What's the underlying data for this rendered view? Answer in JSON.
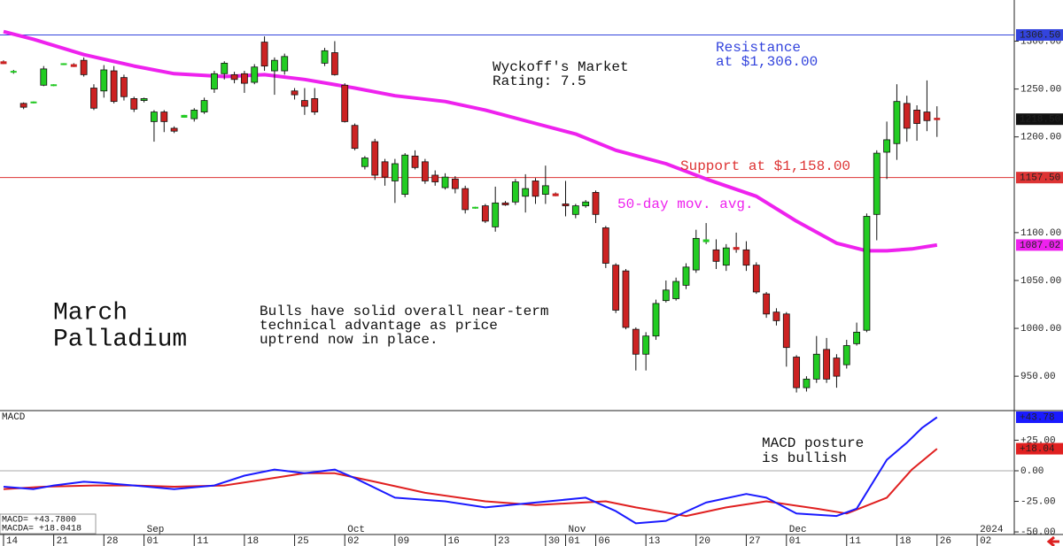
{
  "chart_data": {
    "type": "candlestick",
    "xlim": [
      -0.35,
      100.7
    ],
    "ylim": [
      915,
      1343
    ],
    "yticks": [
      {
        "value": 950,
        "label": "950.00"
      },
      {
        "value": 1000,
        "label": "1000.00"
      },
      {
        "value": 1050,
        "label": "1050.00"
      },
      {
        "value": 1100,
        "label": "1100.00"
      },
      {
        "value": 1200,
        "label": "1200.00"
      },
      {
        "value": 1250,
        "label": "1250.00"
      },
      {
        "value": 1300,
        "label": "1300.00"
      }
    ],
    "xticks": [
      {
        "value": 0,
        "label": "14"
      },
      {
        "value": 5,
        "label": "21"
      },
      {
        "value": 10,
        "label": "28"
      },
      {
        "value": 14,
        "label": "01"
      },
      {
        "value": 19,
        "label": "11"
      },
      {
        "value": 24,
        "label": "18"
      },
      {
        "value": 29,
        "label": "25"
      },
      {
        "value": 34,
        "label": "02"
      },
      {
        "value": 39,
        "label": "09"
      },
      {
        "value": 44,
        "label": "16"
      },
      {
        "value": 49,
        "label": "23"
      },
      {
        "value": 54,
        "label": "30"
      },
      {
        "value": 56,
        "label": "01"
      },
      {
        "value": 59,
        "label": "06"
      },
      {
        "value": 64,
        "label": "13"
      },
      {
        "value": 69,
        "label": "20"
      },
      {
        "value": 74,
        "label": "27"
      },
      {
        "value": 78,
        "label": "01"
      },
      {
        "value": 84,
        "label": "11"
      },
      {
        "value": 89,
        "label": "18"
      },
      {
        "value": 93,
        "label": "26"
      },
      {
        "value": 97,
        "label": "02"
      }
    ],
    "xperiods": [
      {
        "value": 14,
        "label": "Sep"
      },
      {
        "value": 34,
        "label": "Oct"
      },
      {
        "value": 56,
        "label": "Nov"
      },
      {
        "value": 78,
        "label": "Dec"
      },
      {
        "value": 97,
        "label": "2024"
      }
    ],
    "up_color": "#22cc22",
    "down_color": "#cc2222",
    "open": [
      1278,
      1268,
      1235,
      1236,
      1254,
      1254,
      1276,
      1275,
      1280,
      1251,
      1248,
      1269,
      1262,
      1240,
      1238,
      1216,
      1226,
      1209,
      1221,
      1219,
      1226,
      1250,
      1266,
      1265,
      1266,
      1257,
      1299,
      1269,
      1269,
      1248,
      1238,
      1240,
      1277,
      1288,
      1254,
      1212,
      1169,
      1195,
      1174,
      1154,
      1140,
      1180,
      1174,
      1160,
      1147,
      1156,
      1146,
      1126,
      1128,
      1106,
      1131,
      1132,
      1138,
      1154,
      1140,
      1140,
      1130,
      1119,
      1128,
      1142,
      1105,
      1066,
      1060,
      999,
      973,
      992,
      1029,
      1031,
      1045,
      1061,
      1091,
      1082,
      1066,
      1084,
      1082,
      1066,
      1036,
      1017,
      1015,
      970,
      938,
      947,
      978,
      969,
      962,
      984,
      998,
      1119,
      1184,
      1193,
      1235,
      1228,
      1226,
      1219
    ],
    "high": [
      1280,
      1270,
      1236,
      1237,
      1274,
      1255,
      1277,
      1277,
      1283,
      1255,
      1275,
      1274,
      1265,
      1242,
      1241,
      1228,
      1228,
      1211,
      1223,
      1230,
      1241,
      1269,
      1279,
      1268,
      1269,
      1276,
      1305,
      1283,
      1287,
      1251,
      1251,
      1251,
      1293,
      1300,
      1256,
      1214,
      1180,
      1198,
      1177,
      1177,
      1183,
      1186,
      1177,
      1165,
      1162,
      1159,
      1149,
      1127,
      1130,
      1148,
      1133,
      1156,
      1161,
      1157,
      1170,
      1142,
      1154,
      1130,
      1134,
      1144,
      1107,
      1068,
      1062,
      1001,
      996,
      1030,
      1050,
      1053,
      1068,
      1103,
      1110,
      1093,
      1088,
      1100,
      1091,
      1069,
      1038,
      1021,
      1017,
      972,
      950,
      992,
      990,
      973,
      988,
      1006,
      1120,
      1186,
      1216,
      1255,
      1243,
      1233,
      1259,
      1232
    ],
    "low": [
      1276,
      1266,
      1229,
      1235,
      1253,
      1253,
      1275,
      1273,
      1263,
      1228,
      1241,
      1235,
      1238,
      1226,
      1236,
      1195,
      1205,
      1204,
      1220,
      1216,
      1224,
      1246,
      1260,
      1256,
      1246,
      1255,
      1269,
      1244,
      1265,
      1239,
      1223,
      1223,
      1274,
      1264,
      1215,
      1186,
      1166,
      1155,
      1149,
      1131,
      1137,
      1166,
      1151,
      1149,
      1145,
      1141,
      1120,
      1125,
      1110,
      1101,
      1128,
      1129,
      1121,
      1130,
      1130,
      1138,
      1117,
      1115,
      1126,
      1110,
      1063,
      1016,
      999,
      956,
      956,
      988,
      1027,
      1029,
      1041,
      1058,
      1088,
      1062,
      1060,
      1079,
      1060,
      1036,
      1011,
      1003,
      960,
      933,
      934,
      943,
      943,
      938,
      958,
      982,
      996,
      1092,
      1156,
      1176,
      1195,
      1196,
      1206,
      1200
    ],
    "close": [
      1277,
      1268,
      1231,
      1236,
      1271,
      1254,
      1276,
      1274,
      1265,
      1230,
      1270,
      1237,
      1242,
      1229,
      1240,
      1226,
      1216,
      1206,
      1222,
      1228,
      1238,
      1266,
      1277,
      1260,
      1256,
      1273,
      1274,
      1280,
      1284,
      1244,
      1232,
      1226,
      1290,
      1265,
      1216,
      1188,
      1178,
      1160,
      1158,
      1172,
      1181,
      1168,
      1154,
      1153,
      1158,
      1146,
      1124,
      1126,
      1112,
      1131,
      1129,
      1153,
      1146,
      1138,
      1149,
      1139,
      1128,
      1128,
      1132,
      1119,
      1068,
      1019,
      1001,
      973,
      992,
      1026,
      1040,
      1049,
      1064,
      1094,
      1092,
      1070,
      1084,
      1083,
      1066,
      1038,
      1015,
      1008,
      980,
      938,
      947,
      973,
      947,
      950,
      982,
      996,
      1117,
      1183,
      1197,
      1237,
      1209,
      1214,
      1217,
      1218.5
    ],
    "moving_average": {
      "color": "#ee22ee",
      "x": [
        0,
        3,
        8,
        13,
        17,
        22,
        26,
        30,
        35,
        39,
        44,
        48,
        53,
        57,
        61,
        66,
        70,
        75,
        79,
        83,
        86,
        88,
        90.5,
        93
      ],
      "values": [
        1310,
        1302,
        1286,
        1274,
        1266,
        1263,
        1265,
        1260,
        1251,
        1243,
        1237,
        1228,
        1214,
        1203,
        1186,
        1172,
        1156,
        1138,
        1112,
        1089,
        1081,
        1081,
        1083,
        1087.02
      ]
    },
    "levels": [
      {
        "value": 1306.5,
        "label": "1306.50",
        "color": "#3344dd",
        "line": true
      },
      {
        "value": 1157.5,
        "label": "1157.50",
        "color": "#dd3333",
        "line": true
      },
      {
        "value": 1218.5,
        "label": "1218.50",
        "color": "#111111",
        "line": false
      },
      {
        "value": 1087.02,
        "label": "1087.02",
        "color": "#ee22ee",
        "line": false
      }
    ],
    "annotations": [
      {
        "lines": [
          "Wyckoff's Market",
          "Rating: 7.5"
        ],
        "color": "#111111"
      },
      {
        "lines": [
          "Resistance",
          "at $1,306.00"
        ],
        "color": "#3344dd"
      },
      {
        "lines": [
          "Support at $1,158.00"
        ],
        "color": "#dd3333"
      },
      {
        "lines": [
          "50-day mov. avg."
        ],
        "color": "#ee22ee"
      },
      {
        "lines": [
          "March",
          "Palladium"
        ],
        "color": "#111111"
      },
      {
        "lines": [
          "Bulls have solid overall near-term",
          "technical advantage as price",
          "uptrend now in place."
        ],
        "color": "#111111"
      }
    ],
    "macd": {
      "title": "MACD",
      "ylim": [
        -51.4,
        48.5
      ],
      "yticks": [
        {
          "value": 25,
          "label": "+25.00"
        },
        {
          "value": 0,
          "label": "0.00"
        },
        {
          "value": -25,
          "label": "-25.00"
        },
        {
          "value": -50,
          "label": "-50.00"
        }
      ],
      "series": [
        {
          "name": "MACD",
          "color": "#1a1aff",
          "end_label": "+43.78",
          "readout": "MACD=  +43.7800",
          "x": [
            0,
            3,
            5,
            8,
            10,
            13,
            17,
            21,
            24,
            27,
            30,
            33,
            35,
            39,
            44,
            48,
            53,
            58,
            61,
            63,
            66,
            70,
            74,
            76,
            79,
            83,
            85,
            88,
            90,
            91.5,
            93
          ],
          "values": [
            -13,
            -15,
            -12,
            -9,
            -10,
            -12,
            -15,
            -12,
            -4,
            1,
            -2,
            1,
            -6,
            -22,
            -25,
            -30,
            -26,
            -22,
            -33,
            -43,
            -41,
            -26,
            -19,
            -22,
            -35,
            -37,
            -31,
            9,
            23,
            35,
            43.78
          ]
        },
        {
          "name": "MACDA",
          "color": "#e02020",
          "end_label": "+18.04",
          "readout": "MACDA= +18.0418",
          "x": [
            0,
            4,
            9,
            13,
            17,
            22,
            26,
            30,
            33,
            37,
            42,
            48,
            53,
            60,
            63,
            68,
            72,
            76,
            81,
            84,
            88,
            90.5,
            93
          ],
          "values": [
            -15,
            -13,
            -12,
            -12,
            -13,
            -12,
            -7,
            -2,
            -2,
            -9,
            -18,
            -25,
            -28,
            -25,
            -30,
            -37,
            -30,
            -25,
            -31,
            -35,
            -22,
            1,
            18.04
          ]
        }
      ],
      "annotation": {
        "lines": [
          "MACD posture",
          "is bullish"
        ],
        "color": "#111111"
      }
    }
  }
}
